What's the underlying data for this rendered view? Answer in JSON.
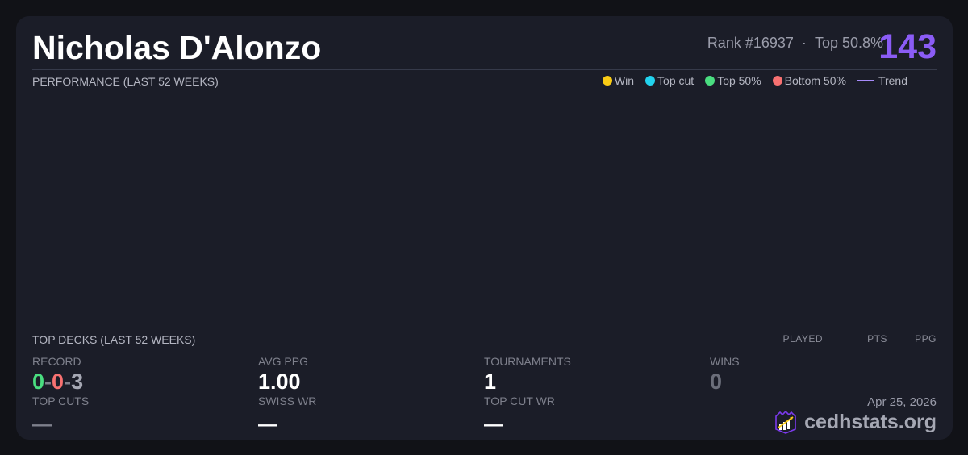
{
  "player": {
    "name": "Nicholas D'Alonzo",
    "rank": "Rank #16937",
    "separator": "·",
    "top_percent": "Top 50.8%",
    "score": "143"
  },
  "performance": {
    "title": "PERFORMANCE (LAST 52 WEEKS)",
    "legend": [
      {
        "label": "Win",
        "color": "#facc15"
      },
      {
        "label": "Top cut",
        "color": "#22d3ee"
      },
      {
        "label": "Top 50%",
        "color": "#4ade80"
      },
      {
        "label": "Bottom 50%",
        "color": "#f87171"
      },
      {
        "label": "Trend",
        "color": "#a78bfa"
      }
    ]
  },
  "decks": {
    "title": "TOP DECKS (LAST 52 WEEKS)",
    "columns": [
      "PLAYED",
      "PTS",
      "PPG"
    ]
  },
  "stats": {
    "record": {
      "label": "RECORD",
      "wins": "0",
      "sep1": "-",
      "losses": "0",
      "sep2": "-",
      "draws": "3"
    },
    "avg_ppg": {
      "label": "AVG PPG",
      "value": "1.00"
    },
    "tournaments": {
      "label": "TOURNAMENTS",
      "value": "1"
    },
    "wins": {
      "label": "WINS",
      "value": "0"
    },
    "top_cuts": {
      "label": "TOP CUTS",
      "value": "—"
    },
    "swiss_wr": {
      "label": "SWISS WR",
      "value": "—"
    },
    "top_cut_wr": {
      "label": "TOP CUT WR",
      "value": "—"
    }
  },
  "footer": {
    "date": "Apr 25, 2026",
    "brand": "cedhstats.org"
  }
}
